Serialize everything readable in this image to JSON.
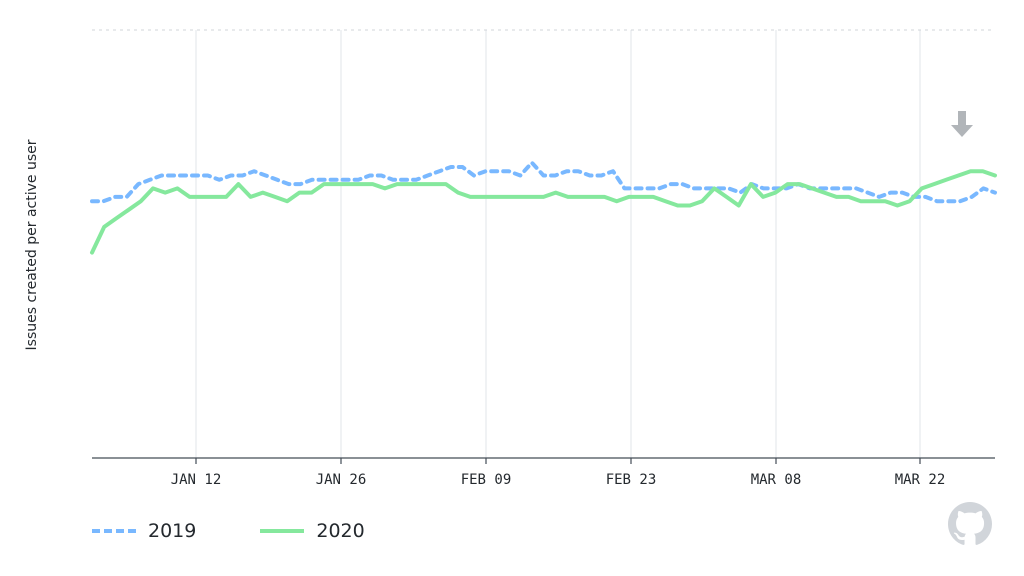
{
  "chart_data": {
    "type": "line",
    "ylabel": "Issues created per active user",
    "xlabel": "",
    "x_ticks": [
      "JAN 12",
      "JAN 26",
      "FEB 09",
      "FEB 23",
      "MAR 08",
      "MAR 22"
    ],
    "grid": "vertical lines at x ticks, dashed line at top",
    "legend_position": "bottom-left",
    "series": [
      {
        "name": "2019",
        "color": "#79b8ff",
        "style": "dashed",
        "values": [
          0.6,
          0.6,
          0.61,
          0.61,
          0.64,
          0.65,
          0.66,
          0.66,
          0.66,
          0.66,
          0.66,
          0.65,
          0.66,
          0.66,
          0.67,
          0.66,
          0.65,
          0.64,
          0.64,
          0.65,
          0.65,
          0.65,
          0.65,
          0.65,
          0.66,
          0.66,
          0.65,
          0.65,
          0.65,
          0.66,
          0.67,
          0.68,
          0.68,
          0.66,
          0.67,
          0.67,
          0.67,
          0.66,
          0.69,
          0.66,
          0.66,
          0.67,
          0.67,
          0.66,
          0.66,
          0.67,
          0.63,
          0.63,
          0.63,
          0.63,
          0.64,
          0.64,
          0.63,
          0.63,
          0.63,
          0.63,
          0.62,
          0.64,
          0.63,
          0.63,
          0.63,
          0.64,
          0.63,
          0.63,
          0.63,
          0.63,
          0.63,
          0.62,
          0.61,
          0.62,
          0.62,
          0.61,
          0.61,
          0.6,
          0.6,
          0.6,
          0.61,
          0.63,
          0.62
        ]
      },
      {
        "name": "2020",
        "color": "#85e89d",
        "style": "solid",
        "values": [
          0.48,
          0.54,
          0.56,
          0.58,
          0.6,
          0.63,
          0.62,
          0.63,
          0.61,
          0.61,
          0.61,
          0.61,
          0.64,
          0.61,
          0.62,
          0.61,
          0.6,
          0.62,
          0.62,
          0.64,
          0.64,
          0.64,
          0.64,
          0.64,
          0.63,
          0.64,
          0.64,
          0.64,
          0.64,
          0.64,
          0.62,
          0.61,
          0.61,
          0.61,
          0.61,
          0.61,
          0.61,
          0.61,
          0.62,
          0.61,
          0.61,
          0.61,
          0.61,
          0.6,
          0.61,
          0.61,
          0.61,
          0.6,
          0.59,
          0.59,
          0.6,
          0.63,
          0.61,
          0.59,
          0.64,
          0.61,
          0.62,
          0.64,
          0.64,
          0.63,
          0.62,
          0.61,
          0.61,
          0.6,
          0.6,
          0.6,
          0.59,
          0.6,
          0.63,
          0.64,
          0.65,
          0.66,
          0.67,
          0.67,
          0.66
        ]
      }
    ],
    "ylim": [
      0,
      1
    ]
  },
  "legend": {
    "item_2019": "2019",
    "item_2020": "2020"
  },
  "icons": {
    "marker": "arrow-down-icon",
    "logo": "github-octocat-icon"
  }
}
